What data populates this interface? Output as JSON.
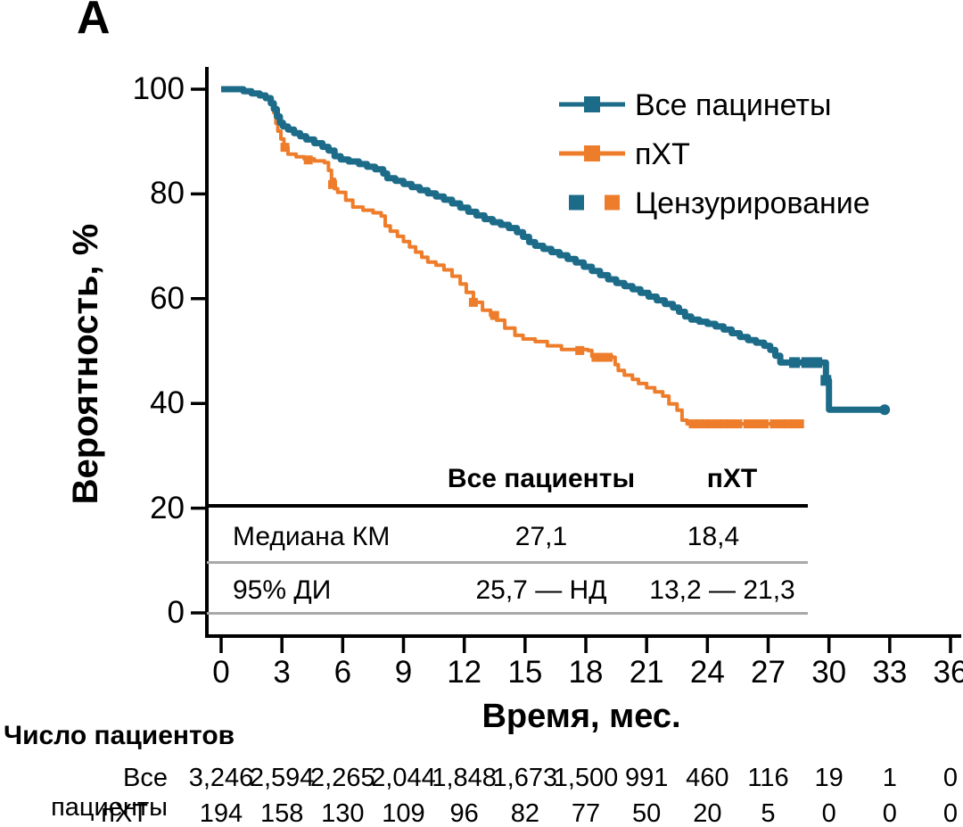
{
  "panel_label": "A",
  "colors": {
    "all_patients": "#1c6b89",
    "pxt": "#ee7d2b",
    "axis": "#000000",
    "table_line_thick": "#000000",
    "table_line_thin": "#a9a9a9"
  },
  "chart_data": {
    "type": "line",
    "subtype": "kaplan-meier-step",
    "xlabel": "Время, мес.",
    "ylabel": "Вероятность, %",
    "xlim": [
      0,
      36
    ],
    "ylim": [
      0,
      100
    ],
    "x_ticks": [
      0,
      3,
      6,
      9,
      12,
      15,
      18,
      21,
      24,
      27,
      30,
      33,
      36
    ],
    "y_ticks": [
      0,
      20,
      40,
      60,
      80,
      100
    ],
    "grid": false,
    "legend_position": "top-right",
    "legend": [
      {
        "label": "Все пацинеты",
        "marker": "line-square",
        "color_key": "all_patients"
      },
      {
        "label": "пХТ",
        "marker": "line-square",
        "color_key": "pxt"
      },
      {
        "label": "Цензурирование",
        "marker": "two-squares",
        "color_keys": [
          "all_patients",
          "pxt"
        ]
      }
    ],
    "series": [
      {
        "name": "пХТ",
        "color_key": "pxt",
        "step": true,
        "line_width": 4,
        "points": [
          [
            0,
            100
          ],
          [
            0.9,
            100
          ],
          [
            1.1,
            99.6
          ],
          [
            1.5,
            99.2
          ],
          [
            1.9,
            98.8
          ],
          [
            2.2,
            98.3
          ],
          [
            2.45,
            97.2
          ],
          [
            2.6,
            95.5
          ],
          [
            2.7,
            93.5
          ],
          [
            2.8,
            92.0
          ],
          [
            2.95,
            90.5
          ],
          [
            3.1,
            88.9
          ],
          [
            3.3,
            87.6
          ],
          [
            3.7,
            87.1
          ],
          [
            4.1,
            86.7
          ],
          [
            4.6,
            86.3
          ],
          [
            5.1,
            86.0
          ],
          [
            5.3,
            84.5
          ],
          [
            5.45,
            82.8
          ],
          [
            5.6,
            81.0
          ],
          [
            5.75,
            80.3
          ],
          [
            6.15,
            78.8
          ],
          [
            6.5,
            77.5
          ],
          [
            7.0,
            76.9
          ],
          [
            7.5,
            76.4
          ],
          [
            7.9,
            75.8
          ],
          [
            8.1,
            73.9
          ],
          [
            8.35,
            72.9
          ],
          [
            8.7,
            71.9
          ],
          [
            9.0,
            70.9
          ],
          [
            9.3,
            69.9
          ],
          [
            9.6,
            68.9
          ],
          [
            9.9,
            67.9
          ],
          [
            10.2,
            67.0
          ],
          [
            10.6,
            66.4
          ],
          [
            11.0,
            65.5
          ],
          [
            11.4,
            64.3
          ],
          [
            11.8,
            62.8
          ],
          [
            12.1,
            61.2
          ],
          [
            12.45,
            59.3
          ],
          [
            12.9,
            57.8
          ],
          [
            13.3,
            56.8
          ],
          [
            13.6,
            55.9
          ],
          [
            14.0,
            54.4
          ],
          [
            14.5,
            53.0
          ],
          [
            14.9,
            52.3
          ],
          [
            15.5,
            51.8
          ],
          [
            16.1,
            51.0
          ],
          [
            16.8,
            50.3
          ],
          [
            18.1,
            50.1
          ],
          [
            18.3,
            49.0
          ],
          [
            19.3,
            48.8
          ],
          [
            19.45,
            47.4
          ],
          [
            19.6,
            46.3
          ],
          [
            19.9,
            45.4
          ],
          [
            20.3,
            44.6
          ],
          [
            20.6,
            43.8
          ],
          [
            21.0,
            43.0
          ],
          [
            21.4,
            42.2
          ],
          [
            21.8,
            41.4
          ],
          [
            22.1,
            39.9
          ],
          [
            22.5,
            38.7
          ],
          [
            22.75,
            36.8
          ],
          [
            23.0,
            36.1
          ],
          [
            28.6,
            36.1
          ]
        ],
        "censor_marks": [
          [
            3.15,
            88.9
          ],
          [
            4.3,
            86.5
          ],
          [
            5.5,
            81.8
          ],
          [
            12.45,
            59.3
          ],
          [
            13.5,
            56.8
          ],
          [
            17.7,
            50.1
          ],
          [
            18.5,
            48.8
          ],
          [
            18.8,
            48.8
          ],
          [
            19.1,
            48.8
          ],
          [
            23.3,
            36.1
          ],
          [
            23.6,
            36.1
          ],
          [
            23.9,
            36.1
          ],
          [
            24.2,
            36.1
          ],
          [
            24.5,
            36.1
          ],
          [
            24.8,
            36.1
          ],
          [
            25.1,
            36.1
          ],
          [
            25.5,
            36.1
          ],
          [
            26.0,
            36.1
          ],
          [
            26.4,
            36.1
          ],
          [
            26.8,
            36.1
          ],
          [
            27.3,
            36.1
          ],
          [
            27.7,
            36.1
          ],
          [
            28.0,
            36.1
          ],
          [
            28.3,
            36.1
          ],
          [
            28.55,
            36.1
          ]
        ]
      },
      {
        "name": "Все пацинеты",
        "color_key": "all_patients",
        "step": true,
        "line_width": 7,
        "points": [
          [
            0,
            100
          ],
          [
            0.9,
            100
          ],
          [
            1.1,
            99.6
          ],
          [
            1.5,
            99.2
          ],
          [
            1.9,
            98.8
          ],
          [
            2.2,
            98.3
          ],
          [
            2.45,
            97.3
          ],
          [
            2.6,
            96.2
          ],
          [
            2.75,
            94.8
          ],
          [
            2.9,
            93.6
          ],
          [
            3.05,
            92.9
          ],
          [
            3.3,
            92.3
          ],
          [
            3.6,
            91.6
          ],
          [
            3.9,
            91.0
          ],
          [
            4.2,
            90.4
          ],
          [
            4.6,
            89.7
          ],
          [
            5.0,
            89.0
          ],
          [
            5.3,
            88.3
          ],
          [
            5.6,
            87.2
          ],
          [
            5.9,
            86.6
          ],
          [
            6.3,
            86.2
          ],
          [
            6.8,
            85.7
          ],
          [
            7.2,
            85.2
          ],
          [
            7.6,
            84.7
          ],
          [
            8.0,
            83.9
          ],
          [
            8.2,
            83.0
          ],
          [
            8.6,
            82.5
          ],
          [
            9.0,
            81.9
          ],
          [
            9.4,
            81.3
          ],
          [
            9.8,
            80.7
          ],
          [
            10.2,
            80.1
          ],
          [
            10.6,
            79.5
          ],
          [
            11.0,
            78.9
          ],
          [
            11.4,
            78.2
          ],
          [
            11.8,
            77.4
          ],
          [
            12.2,
            76.6
          ],
          [
            12.6,
            75.9
          ],
          [
            13.0,
            75.2
          ],
          [
            13.4,
            74.6
          ],
          [
            13.8,
            74.1
          ],
          [
            14.2,
            73.5
          ],
          [
            14.6,
            72.7
          ],
          [
            14.9,
            71.8
          ],
          [
            15.2,
            70.8
          ],
          [
            15.5,
            70.1
          ],
          [
            15.9,
            69.5
          ],
          [
            16.3,
            68.9
          ],
          [
            16.7,
            68.3
          ],
          [
            17.1,
            67.6
          ],
          [
            17.5,
            66.9
          ],
          [
            17.9,
            66.1
          ],
          [
            18.3,
            65.3
          ],
          [
            18.7,
            64.5
          ],
          [
            19.1,
            63.7
          ],
          [
            19.5,
            63.0
          ],
          [
            19.9,
            62.4
          ],
          [
            20.3,
            61.8
          ],
          [
            20.7,
            61.1
          ],
          [
            21.1,
            60.4
          ],
          [
            21.5,
            59.7
          ],
          [
            21.9,
            59.0
          ],
          [
            22.3,
            58.3
          ],
          [
            22.6,
            57.5
          ],
          [
            22.9,
            56.6
          ],
          [
            23.2,
            56.0
          ],
          [
            23.6,
            55.6
          ],
          [
            24.0,
            55.2
          ],
          [
            24.4,
            54.7
          ],
          [
            24.8,
            54.1
          ],
          [
            25.2,
            53.4
          ],
          [
            25.6,
            52.7
          ],
          [
            26.0,
            52.1
          ],
          [
            26.4,
            51.6
          ],
          [
            26.8,
            51.0
          ],
          [
            27.1,
            50.2
          ],
          [
            27.35,
            49.1
          ],
          [
            27.6,
            47.8
          ],
          [
            29.85,
            47.8
          ],
          [
            29.85,
            44.4
          ],
          [
            30.0,
            44.4
          ],
          [
            30.0,
            38.8
          ],
          [
            32.75,
            38.8
          ]
        ],
        "censor_marks": [
          [
            28.3,
            47.8
          ],
          [
            28.9,
            47.8
          ],
          [
            29.4,
            47.8
          ],
          [
            29.85,
            44.4
          ]
        ],
        "end_dot": [
          32.75,
          38.8
        ]
      }
    ]
  },
  "stats_table": {
    "col_headers": [
      "Все пациенты",
      "пХТ"
    ],
    "rows": [
      {
        "label": "Медиана КМ",
        "values": [
          "27,1",
          "18,4"
        ]
      },
      {
        "label": "95% ДИ",
        "values": [
          "25,7 — НД",
          "13,2 — 21,3"
        ]
      }
    ]
  },
  "risk_table": {
    "title": "Число пациентов",
    "rows": [
      {
        "label": "Все пациенты",
        "counts": [
          "3,246",
          "2,594",
          "2,265",
          "2,044",
          "1,848",
          "1,673",
          "1,500",
          "991",
          "460",
          "116",
          "19",
          "1",
          "0"
        ]
      },
      {
        "label": "пХТ",
        "counts": [
          "194",
          "158",
          "130",
          "109",
          "96",
          "82",
          "77",
          "50",
          "20",
          "5",
          "0",
          "0",
          "0"
        ]
      }
    ]
  }
}
